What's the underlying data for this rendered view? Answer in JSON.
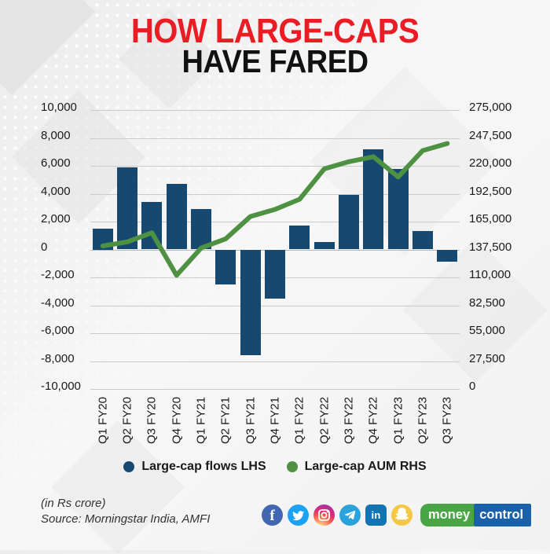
{
  "title": {
    "line1": "HOW LARGE-CAPS",
    "line2": "HAVE FARED"
  },
  "chart_data": {
    "type": "bar",
    "subtype": "combo-bar-line",
    "categories": [
      "Q1 FY20",
      "Q2 FY20",
      "Q3 FY20",
      "Q4 FY20",
      "Q1 FY21",
      "Q2 FY21",
      "Q3 FY21",
      "Q4 FY21",
      "Q1 FY22",
      "Q2 FY22",
      "Q3 FY22",
      "Q4 FY22",
      "Q1 FY23",
      "Q2 FY23",
      "Q3 FY23"
    ],
    "series": [
      {
        "name": "Large-cap flows LHS",
        "type": "bar",
        "axis": "left",
        "values": [
          1500,
          5900,
          3400,
          4700,
          2900,
          -2500,
          -7600,
          -3500,
          1700,
          550,
          3900,
          7200,
          5800,
          1300,
          -900
        ]
      },
      {
        "name": "Large-cap AUM RHS",
        "type": "line",
        "axis": "right",
        "values": [
          141000,
          145000,
          154000,
          112000,
          139000,
          148000,
          170000,
          177000,
          187000,
          217000,
          224000,
          229000,
          209000,
          235000,
          242000
        ]
      }
    ],
    "left_axis": {
      "min": -10000,
      "max": 10000,
      "step": 2000,
      "ticks": [
        "10,000",
        "8,000",
        "6,000",
        "4,000",
        "2,000",
        "0",
        "-2,000",
        "-4,000",
        "-6,000",
        "-8,000",
        "-10,000"
      ]
    },
    "right_axis": {
      "min": 0,
      "max": 275000,
      "step": 27500,
      "ticks": [
        "275,000",
        "247,500",
        "220,000",
        "192,500",
        "165,000",
        "137,500",
        "110,000",
        "82,500",
        "55,000",
        "27,500",
        "0"
      ]
    },
    "grid": true,
    "legend_position": "bottom",
    "title": "HOW LARGE-CAPS HAVE FARED",
    "xlabel": "",
    "ylabel_left": "",
    "ylabel_right": ""
  },
  "legend": [
    {
      "label": "Large-cap flows LHS",
      "color": "#17486F"
    },
    {
      "label": "Large-cap AUM RHS",
      "color": "#4F9142"
    }
  ],
  "footer": {
    "note": "(in Rs crore)",
    "source": "Source: Morningstar India, AMFI"
  },
  "social": {
    "icons": [
      "facebook",
      "twitter",
      "instagram",
      "telegram",
      "linkedin",
      "snapchat"
    ],
    "linkedin_label": "in"
  },
  "brand": {
    "part1": "money",
    "part2": "control"
  },
  "colors": {
    "bar": "#17486F",
    "line": "#4F9142",
    "title_red": "#EA1C24",
    "title_black": "#111111",
    "grid": "#CBCBCB",
    "text": "#1A1A1A",
    "facebook": "#4267B2",
    "twitter": "#1DA1F2",
    "telegram": "#2AA3DC",
    "linkedin": "#1275B1",
    "snapchat": "#F6C744",
    "instagram_fallback": "#DD2A7B",
    "mc_green": "#4AA546",
    "mc_blue": "#1B61A9"
  }
}
